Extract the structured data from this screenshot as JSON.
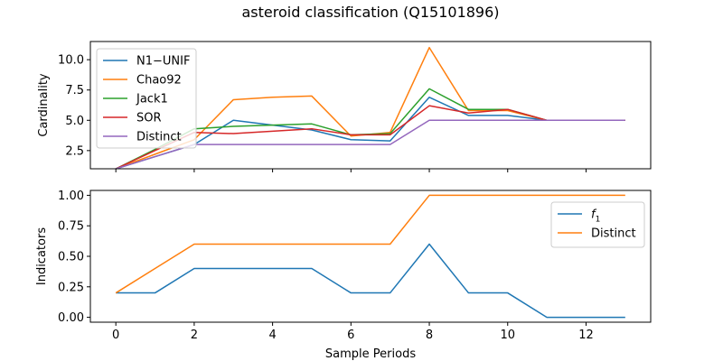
{
  "title": "asteroid classification (Q15101896)",
  "x_label": "Sample Periods",
  "chart_data": [
    {
      "type": "line",
      "ylabel": "Cardinality",
      "xlim": [
        -0.65,
        13.65
      ],
      "ylim": [
        1.0,
        11.5
      ],
      "grid": false,
      "legend_position": "upper-left",
      "yticks": [
        2.5,
        5.0,
        7.5,
        10.0
      ],
      "ytick_labels": [
        "2.5",
        "5.0",
        "7.5",
        "10.0"
      ],
      "x": [
        0,
        1,
        2,
        3,
        4,
        5,
        6,
        7,
        8,
        9,
        10,
        11,
        12,
        13
      ],
      "series": [
        {
          "name": "N1−UNIF",
          "color": "#1f77b4",
          "values": [
            1,
            2,
            3,
            5,
            4.6,
            4.2,
            3.4,
            3.3,
            6.9,
            5.4,
            5.4,
            5,
            5,
            5
          ]
        },
        {
          "name": "Chao92",
          "color": "#ff7f0e",
          "values": [
            1,
            2.2,
            3.4,
            6.7,
            6.9,
            7,
            3.7,
            4,
            11,
            5.8,
            5.8,
            5,
            5,
            5
          ]
        },
        {
          "name": "Jack1",
          "color": "#2ca02c",
          "values": [
            1,
            2.6,
            4.3,
            4.5,
            4.6,
            4.7,
            3.8,
            3.9,
            7.6,
            5.9,
            5.9,
            5,
            5,
            5
          ]
        },
        {
          "name": "SOR",
          "color": "#d62728",
          "values": [
            1,
            2.5,
            4,
            3.9,
            4.1,
            4.3,
            3.8,
            3.8,
            6.2,
            5.6,
            5.9,
            5,
            5,
            5
          ]
        },
        {
          "name": "Distinct",
          "color": "#9467bd",
          "values": [
            1,
            2,
            3,
            3,
            3,
            3,
            3,
            3,
            5,
            5,
            5,
            5,
            5,
            5
          ]
        }
      ]
    },
    {
      "type": "line",
      "xlabel": "Sample Periods",
      "ylabel": "Indicators",
      "xlim": [
        -0.65,
        13.65
      ],
      "ylim": [
        -0.04,
        1.04
      ],
      "grid": false,
      "legend_position": "upper-right",
      "xticks": [
        0,
        2,
        4,
        6,
        8,
        10,
        12
      ],
      "xtick_labels": [
        "0",
        "2",
        "4",
        "6",
        "8",
        "10",
        "12"
      ],
      "yticks": [
        0.0,
        0.25,
        0.5,
        0.75,
        1.0
      ],
      "ytick_labels": [
        "0.00",
        "0.25",
        "0.50",
        "0.75",
        "1.00"
      ],
      "x": [
        0,
        1,
        2,
        3,
        4,
        5,
        6,
        7,
        8,
        9,
        10,
        11,
        12,
        13
      ],
      "series": [
        {
          "name": "f",
          "name_sub": "1",
          "color": "#1f77b4",
          "values": [
            0.2,
            0.2,
            0.4,
            0.4,
            0.4,
            0.4,
            0.2,
            0.2,
            0.6,
            0.2,
            0.2,
            0,
            0,
            0
          ]
        },
        {
          "name": "Distinct",
          "color": "#ff7f0e",
          "values": [
            0.2,
            0.4,
            0.6,
            0.6,
            0.6,
            0.6,
            0.6,
            0.6,
            1,
            1,
            1,
            1,
            1,
            1
          ]
        }
      ]
    }
  ]
}
